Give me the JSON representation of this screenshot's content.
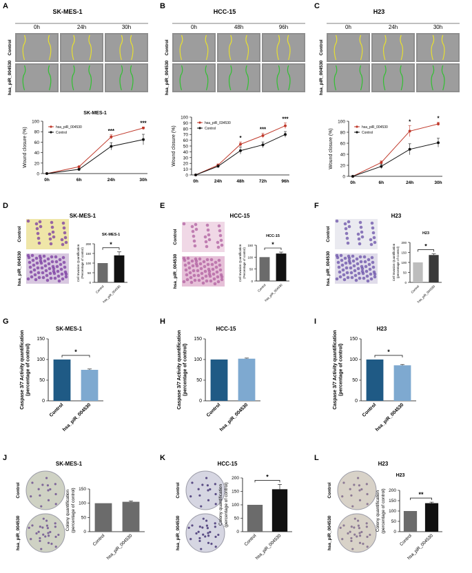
{
  "panel_letters": [
    "A",
    "B",
    "C",
    "D",
    "E",
    "F",
    "G",
    "H",
    "I",
    "J",
    "K",
    "L"
  ],
  "labels": {
    "control": "Control",
    "treated": "hsa_piR_004530",
    "treated_alt": "hsa_piR_034530"
  },
  "colors": {
    "red": "#c0392b",
    "black": "#111111",
    "dark_blue": "#1f5a85",
    "light_blue": "#7ea9d0",
    "grey": "#6b6b6b",
    "light_grey": "#bdbdbd",
    "dark_grey": "#3a3a3a",
    "yellow": "#e8e030",
    "green": "#30c030"
  },
  "wound": [
    {
      "title": "SK-MES-1",
      "times": [
        "0h",
        "24h",
        "30h"
      ]
    },
    {
      "title": "HCC-15",
      "times": [
        "0h",
        "48h",
        "96h"
      ]
    },
    {
      "title": "H23",
      "times": [
        "0h",
        "24h",
        "30h"
      ]
    }
  ],
  "invasion_titles": [
    "SK-MES-1",
    "HCC-15",
    "H23"
  ],
  "caspase_titles": [
    "SK-MES-1",
    "HCC-15",
    "H23"
  ],
  "colony_titles": [
    "SK-MES-1",
    "HCC-15",
    "H23"
  ],
  "chart_data": [
    {
      "id": "A",
      "type": "line",
      "title": "SK-MES-1",
      "x": [
        "0h",
        "6h",
        "24h",
        "30h"
      ],
      "ylabel": "Wound closure (%)",
      "xlabel": "",
      "ylim": [
        0,
        100
      ],
      "yticks": [
        0,
        20,
        40,
        60,
        80,
        100
      ],
      "series": [
        {
          "name": "hsa_piR_004530",
          "color": "#c0392b",
          "values": [
            0,
            13,
            70,
            87
          ],
          "err": [
            0,
            1,
            4,
            2
          ]
        },
        {
          "name": "Control",
          "color": "#111111",
          "values": [
            0,
            8,
            52,
            65
          ],
          "err": [
            0,
            1,
            7,
            10
          ]
        }
      ],
      "significance": [
        "",
        "",
        "***",
        "***"
      ],
      "legend": "top-left"
    },
    {
      "id": "B",
      "type": "line",
      "title": "",
      "x": [
        "0h",
        "24h",
        "48h",
        "72h",
        "96h"
      ],
      "ylabel": "Wound closure (%)",
      "xlabel": "",
      "ylim": [
        0,
        100
      ],
      "yticks": [
        0,
        10,
        20,
        30,
        40,
        50,
        60,
        70,
        80,
        90,
        100
      ],
      "series": [
        {
          "name": "hsa_piR_034530",
          "color": "#c0392b",
          "values": [
            0,
            17,
            53,
            68,
            85
          ],
          "err": [
            0,
            2,
            4,
            4,
            5
          ]
        },
        {
          "name": "Control",
          "color": "#111111",
          "values": [
            0,
            15,
            42,
            52,
            70
          ],
          "err": [
            0,
            2,
            6,
            5,
            5
          ]
        }
      ],
      "significance": [
        "",
        "",
        "*",
        "***",
        "***"
      ],
      "legend": "top-left"
    },
    {
      "id": "C",
      "type": "line",
      "title": "",
      "x": [
        "0h",
        "6h",
        "24h",
        "30h"
      ],
      "ylabel": "Wound closure (%)",
      "xlabel": "",
      "ylim": [
        0,
        100
      ],
      "yticks": [
        0,
        20,
        40,
        60,
        80,
        100
      ],
      "series": [
        {
          "name": "hsa_piR_004530",
          "color": "#c0392b",
          "values": [
            0,
            25,
            82,
            95
          ],
          "err": [
            0,
            3,
            10,
            3
          ]
        },
        {
          "name": "Control",
          "color": "#111111",
          "values": [
            0,
            18,
            49,
            61
          ],
          "err": [
            0,
            4,
            10,
            8
          ]
        }
      ],
      "significance": [
        "",
        "",
        "*",
        "*"
      ],
      "legend": "top-left"
    },
    {
      "id": "D",
      "type": "bar",
      "title": "SK-MES-1",
      "categories": [
        "Control",
        "hsa_piR_004530"
      ],
      "values": [
        100,
        140
      ],
      "err": [
        0,
        18
      ],
      "colors": [
        "#6b6b6b",
        "#111111"
      ],
      "ylabel": "Cell Invasion Quantification\n(Percentage of control)",
      "ylim": [
        0,
        200
      ],
      "yticks": [
        0,
        50,
        100,
        150,
        200
      ],
      "sig": "*"
    },
    {
      "id": "E",
      "type": "bar",
      "title": "HCC-15",
      "categories": [
        "Control",
        "hsa_piR_004530"
      ],
      "values": [
        100,
        115
      ],
      "err": [
        0,
        6
      ],
      "colors": [
        "#6b6b6b",
        "#111111"
      ],
      "ylabel": "Cell Invasion Quantification\n(Percentage of control)",
      "ylim": [
        0,
        150
      ],
      "yticks": [
        0,
        50,
        100,
        150
      ],
      "sig": "*"
    },
    {
      "id": "F",
      "type": "bar",
      "title": "H23",
      "categories": [
        "Control",
        "hsa_piR_004530"
      ],
      "values": [
        100,
        137
      ],
      "err": [
        0,
        6
      ],
      "colors": [
        "#bdbdbd",
        "#3a3a3a"
      ],
      "ylabel": "Cell Invasion Quantification\n(percentage of Control)",
      "ylim": [
        0,
        200
      ],
      "yticks": [
        0,
        50,
        100,
        150,
        200
      ],
      "sig": "*"
    },
    {
      "id": "G",
      "type": "bar",
      "title": "SK-MES-1",
      "categories": [
        "Control",
        "hsa_piR_004530"
      ],
      "values": [
        100,
        75
      ],
      "err": [
        0,
        2
      ],
      "colors": [
        "#1f5a85",
        "#7ea9d0"
      ],
      "ylabel": "Caspase 3/7 Activity quantification\n(percentage of control)",
      "ylim": [
        0,
        150
      ],
      "yticks": [
        0,
        50,
        100,
        150
      ],
      "sig": "*"
    },
    {
      "id": "H",
      "type": "bar",
      "title": "HCC-15",
      "categories": [
        "Control",
        "hsa_piR_004530"
      ],
      "values": [
        100,
        102
      ],
      "err": [
        0,
        1.5
      ],
      "colors": [
        "#1f5a85",
        "#7ea9d0"
      ],
      "ylabel": "Caspase 3/7 Activity quantification\n(percentage of control)",
      "ylim": [
        0,
        150
      ],
      "yticks": [
        0,
        50,
        100,
        150
      ],
      "sig": ""
    },
    {
      "id": "I",
      "type": "bar",
      "title": "H23",
      "categories": [
        "Control",
        "hsa_piR_004530"
      ],
      "values": [
        100,
        86
      ],
      "err": [
        0,
        2
      ],
      "colors": [
        "#1f5a85",
        "#7ea9d0"
      ],
      "ylabel": "Caspase 3/7 Activity quantification\n(percentage of control)",
      "ylim": [
        0,
        150
      ],
      "yticks": [
        0,
        50,
        100,
        150
      ],
      "sig": "*"
    },
    {
      "id": "J",
      "type": "bar",
      "title": "",
      "categories": [
        "Control",
        "hsa_piR_004530"
      ],
      "values": [
        100,
        105
      ],
      "err": [
        0,
        3
      ],
      "colors": [
        "#6b6b6b",
        "#6b6b6b"
      ],
      "ylabel": "Colony quantification\n(percentage of control)",
      "ylim": [
        0,
        150
      ],
      "yticks": [
        0,
        50,
        100,
        150
      ],
      "sig": ""
    },
    {
      "id": "K",
      "type": "bar",
      "title": "",
      "categories": [
        "Control",
        "hsa_piR_004530"
      ],
      "values": [
        100,
        158
      ],
      "err": [
        0,
        18
      ],
      "colors": [
        "#6b6b6b",
        "#111111"
      ],
      "ylabel": "Colony quantification\n(percentage of control)",
      "ylim": [
        0,
        200
      ],
      "yticks": [
        0,
        50,
        100,
        150,
        200
      ],
      "sig": "*"
    },
    {
      "id": "L",
      "type": "bar",
      "title": "H23",
      "categories": [
        "Control",
        "hsa_piR_004530"
      ],
      "values": [
        100,
        138
      ],
      "err": [
        0,
        5
      ],
      "colors": [
        "#6b6b6b",
        "#111111"
      ],
      "ylabel": "Colony quantification\n(percentage of control)",
      "ylim": [
        0,
        200
      ],
      "yticks": [
        0,
        50,
        100,
        150,
        200
      ],
      "sig": "**"
    }
  ]
}
